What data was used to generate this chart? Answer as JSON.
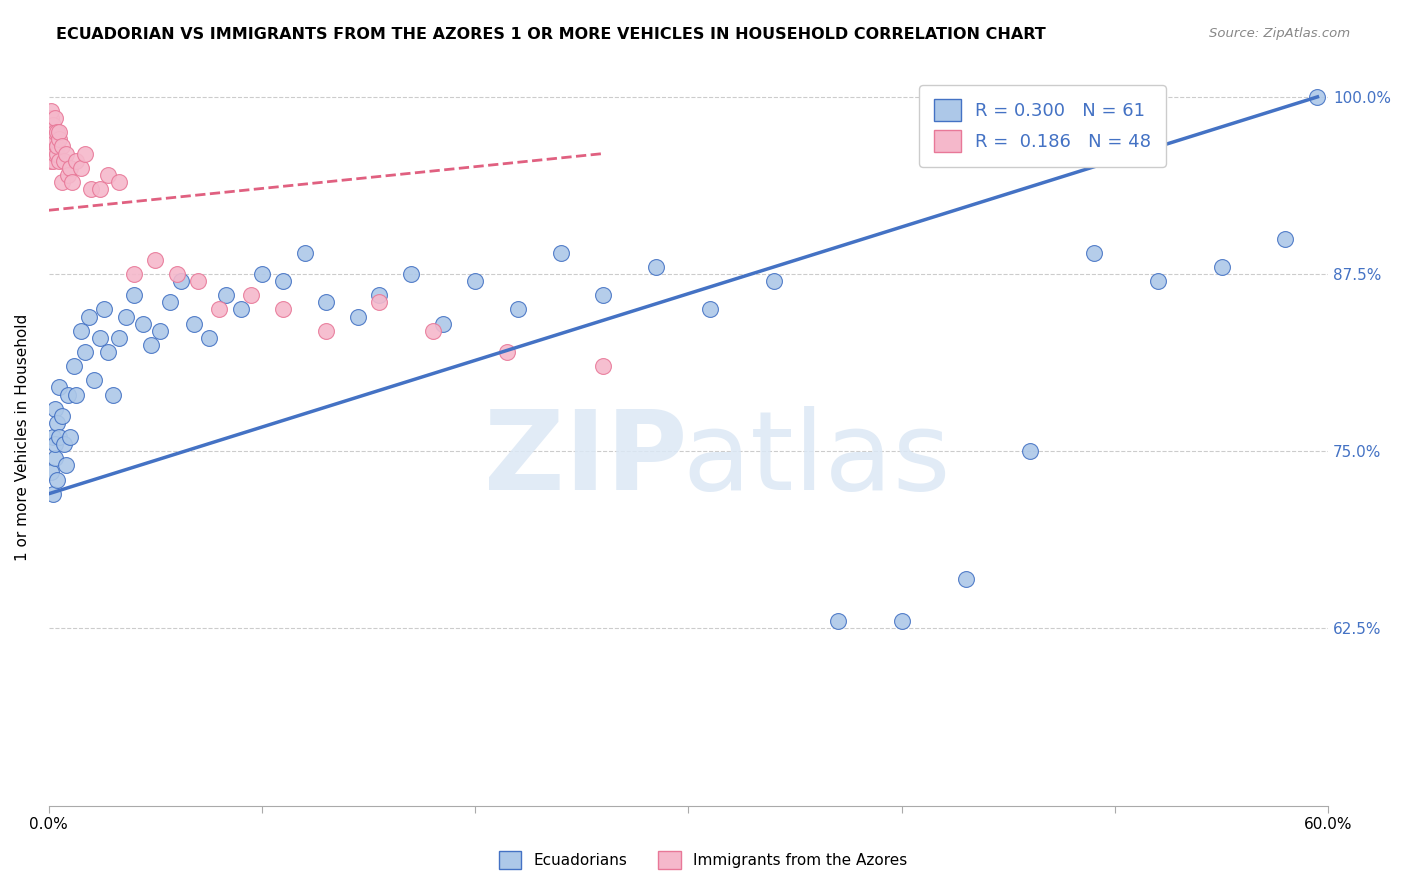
{
  "title": "ECUADORIAN VS IMMIGRANTS FROM THE AZORES 1 OR MORE VEHICLES IN HOUSEHOLD CORRELATION CHART",
  "source": "Source: ZipAtlas.com",
  "ylabel": "1 or more Vehicles in Household",
  "legend_label1": "Ecuadorians",
  "legend_label2": "Immigrants from the Azores",
  "R1": 0.3,
  "N1": 61,
  "R2": 0.186,
  "N2": 48,
  "xlim": [
    0.0,
    0.6
  ],
  "ylim": [
    0.5,
    1.02
  ],
  "xticks": [
    0.0,
    0.1,
    0.2,
    0.3,
    0.4,
    0.5,
    0.6
  ],
  "yticks": [
    0.625,
    0.75,
    0.875,
    1.0
  ],
  "ytick_labels": [
    "62.5%",
    "75.0%",
    "87.5%",
    "100.0%"
  ],
  "color_blue": "#adc8e8",
  "color_blue_edge": "#4472c4",
  "color_blue_line": "#4472c4",
  "color_pink": "#f5b8cb",
  "color_pink_edge": "#e87898",
  "color_pink_line": "#e06080",
  "blue_x": [
    0.001,
    0.002,
    0.002,
    0.003,
    0.003,
    0.003,
    0.004,
    0.004,
    0.005,
    0.005,
    0.006,
    0.007,
    0.008,
    0.009,
    0.01,
    0.012,
    0.013,
    0.015,
    0.017,
    0.019,
    0.021,
    0.024,
    0.026,
    0.028,
    0.03,
    0.033,
    0.036,
    0.04,
    0.044,
    0.048,
    0.052,
    0.057,
    0.062,
    0.068,
    0.075,
    0.083,
    0.09,
    0.1,
    0.11,
    0.12,
    0.13,
    0.145,
    0.155,
    0.17,
    0.185,
    0.2,
    0.22,
    0.24,
    0.26,
    0.285,
    0.31,
    0.34,
    0.37,
    0.4,
    0.43,
    0.46,
    0.49,
    0.52,
    0.55,
    0.58,
    0.595
  ],
  "blue_y": [
    0.735,
    0.76,
    0.72,
    0.745,
    0.78,
    0.755,
    0.77,
    0.73,
    0.76,
    0.795,
    0.775,
    0.755,
    0.74,
    0.79,
    0.76,
    0.81,
    0.79,
    0.835,
    0.82,
    0.845,
    0.8,
    0.83,
    0.85,
    0.82,
    0.79,
    0.83,
    0.845,
    0.86,
    0.84,
    0.825,
    0.835,
    0.855,
    0.87,
    0.84,
    0.83,
    0.86,
    0.85,
    0.875,
    0.87,
    0.89,
    0.855,
    0.845,
    0.86,
    0.875,
    0.84,
    0.87,
    0.85,
    0.89,
    0.86,
    0.88,
    0.85,
    0.87,
    0.63,
    0.63,
    0.66,
    0.75,
    0.89,
    0.87,
    0.88,
    0.9,
    1.0
  ],
  "pink_x": [
    0.0,
    0.0,
    0.001,
    0.001,
    0.001,
    0.001,
    0.001,
    0.001,
    0.002,
    0.002,
    0.002,
    0.002,
    0.003,
    0.003,
    0.003,
    0.003,
    0.004,
    0.004,
    0.004,
    0.005,
    0.005,
    0.005,
    0.006,
    0.006,
    0.007,
    0.008,
    0.009,
    0.01,
    0.011,
    0.013,
    0.015,
    0.017,
    0.02,
    0.024,
    0.028,
    0.033,
    0.04,
    0.05,
    0.06,
    0.07,
    0.08,
    0.095,
    0.11,
    0.13,
    0.155,
    0.18,
    0.215,
    0.26
  ],
  "pink_y": [
    0.97,
    0.975,
    0.96,
    0.965,
    0.975,
    0.985,
    0.955,
    0.99,
    0.965,
    0.975,
    0.98,
    0.955,
    0.97,
    0.975,
    0.96,
    0.985,
    0.96,
    0.975,
    0.965,
    0.97,
    0.975,
    0.955,
    0.965,
    0.94,
    0.955,
    0.96,
    0.945,
    0.95,
    0.94,
    0.955,
    0.95,
    0.96,
    0.935,
    0.935,
    0.945,
    0.94,
    0.875,
    0.885,
    0.875,
    0.87,
    0.85,
    0.86,
    0.85,
    0.835,
    0.855,
    0.835,
    0.82,
    0.81
  ],
  "blue_line_x0": 0.0,
  "blue_line_x1": 0.595,
  "blue_line_y0": 0.72,
  "blue_line_y1": 1.0,
  "pink_line_x0": 0.0,
  "pink_line_x1": 0.26,
  "pink_line_y0": 0.92,
  "pink_line_y1": 0.96
}
